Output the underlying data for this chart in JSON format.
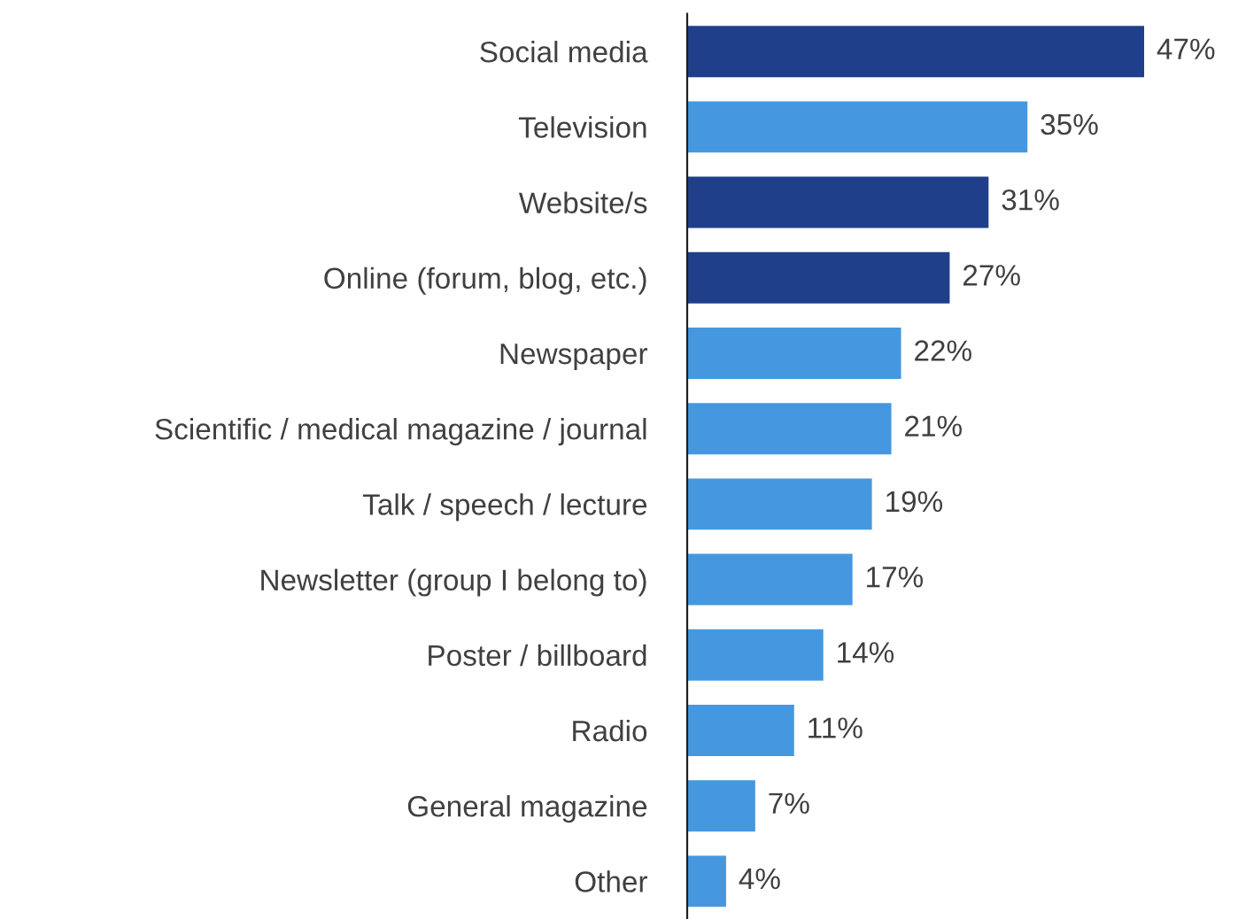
{
  "chart_data": {
    "type": "bar",
    "orientation": "horizontal",
    "categories": [
      "Social media",
      "Television",
      "Website/s",
      "Online (forum, blog, etc.)",
      "Newspaper",
      "Scientific / medical magazine / journal",
      "Talk / speech / lecture",
      "Newsletter (group I belong to)",
      "Poster / billboard",
      "Radio",
      "General magazine",
      "Other"
    ],
    "values": [
      47,
      35,
      31,
      27,
      22,
      21,
      19,
      17,
      14,
      11,
      7,
      4
    ],
    "colors": [
      "#203f8a",
      "#4598e0",
      "#203f8a",
      "#203f8a",
      "#4598e0",
      "#4598e0",
      "#4598e0",
      "#4598e0",
      "#4598e0",
      "#4598e0",
      "#4598e0",
      "#4598e0"
    ],
    "value_labels": [
      "47%",
      "35%",
      "31%",
      "27%",
      "22%",
      "21%",
      "19%",
      "17%",
      "14%",
      "11%",
      "7%",
      "4%"
    ],
    "grid": false,
    "legend": false
  }
}
